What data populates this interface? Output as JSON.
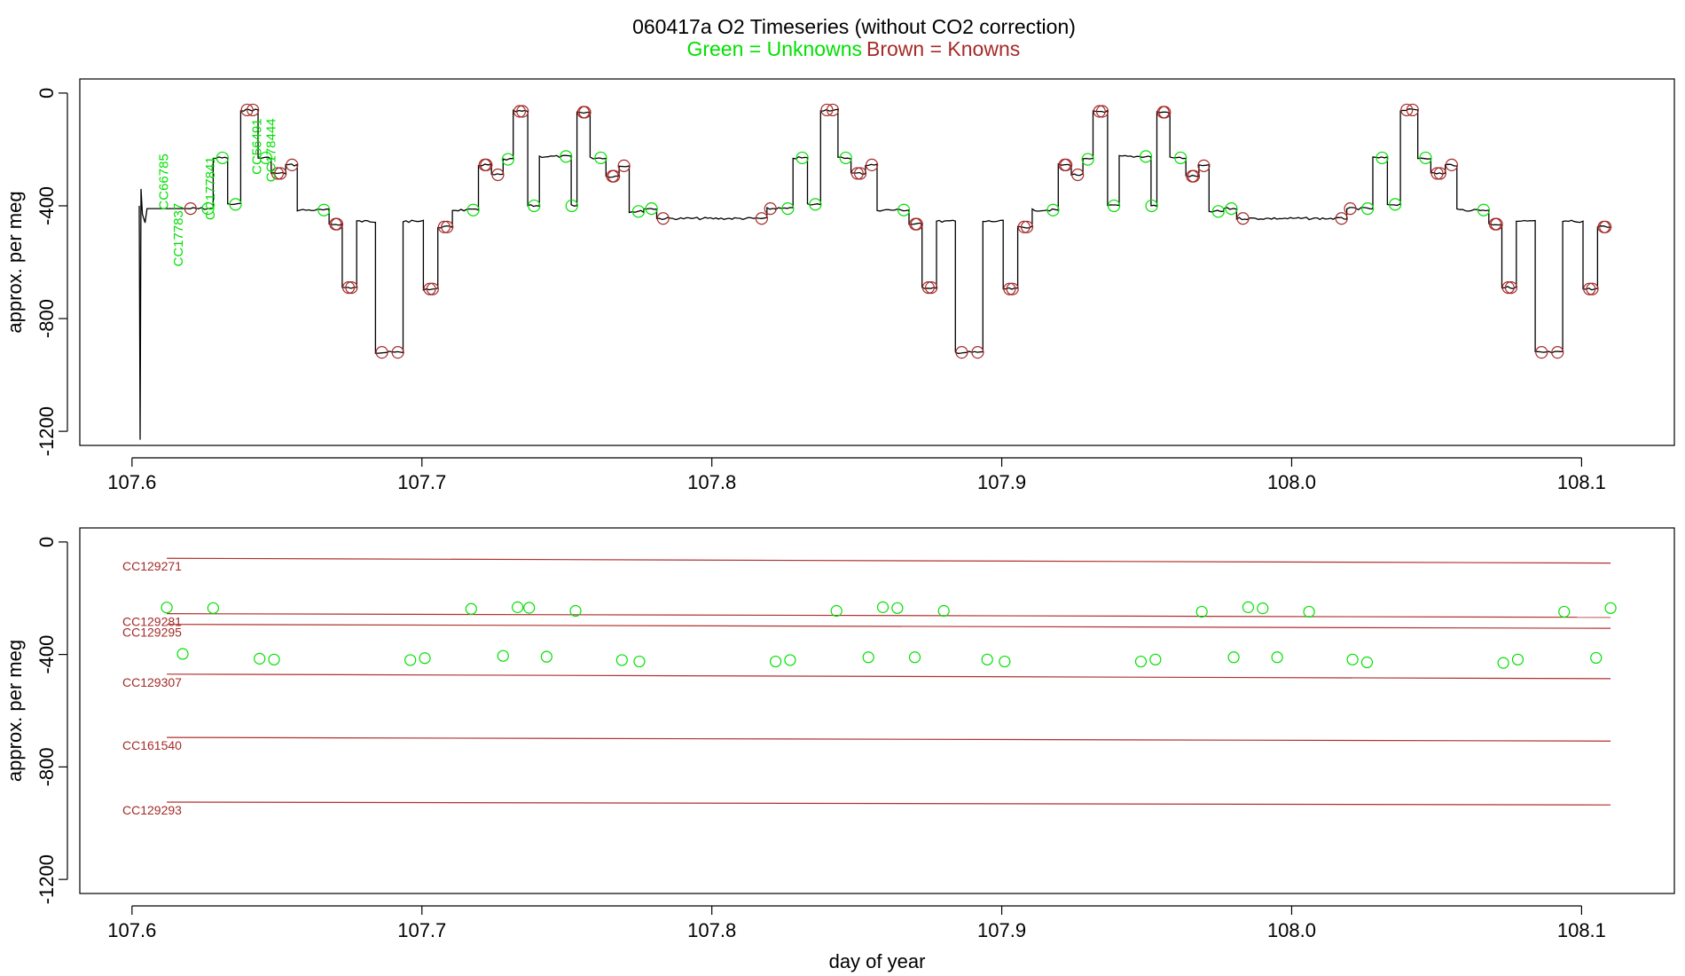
{
  "figure": {
    "title": "060417a   O2 Timeseries (without CO2 correction)",
    "legend_unknowns": "Green = Unknowns",
    "legend_knowns": "Brown = Knowns",
    "colors": {
      "unknowns": "#00e000",
      "knowns": "#a52a2a",
      "trace": "#000000",
      "ref_line": "#b03030"
    }
  },
  "chart_data": [
    {
      "type": "line",
      "panel": "top",
      "xlabel": "",
      "ylabel": "approx. per meg",
      "xlim": [
        107.582,
        108.132
      ],
      "ylim": [
        -1250,
        50
      ],
      "x_ticks": [
        107.6,
        107.7,
        107.8,
        107.9,
        108.0,
        108.1
      ],
      "x_tick_labels": [
        "107.6",
        "107.7",
        "107.8",
        "107.9",
        "108.0",
        "108.1"
      ],
      "y_ticks": [
        0,
        -400,
        -800,
        -1200
      ],
      "y_tick_labels": [
        "0",
        "-400",
        "-800",
        "-1200"
      ],
      "cycle": {
        "period": 0.2,
        "steps": [
          [
            0.0,
            -410,
            "known"
          ],
          [
            0.003,
            -410,
            "unknown"
          ],
          [
            0.009,
            -230,
            "unknown"
          ],
          [
            0.014,
            -395,
            "unknown"
          ],
          [
            0.0185,
            -60,
            "known"
          ],
          [
            0.0245,
            -230,
            "unknown"
          ],
          [
            0.029,
            -285,
            "known"
          ],
          [
            0.034,
            -255,
            "known"
          ],
          [
            0.038,
            -415,
            "unknown"
          ],
          [
            0.049,
            -465,
            "known"
          ],
          [
            0.0535,
            -690,
            "known"
          ],
          [
            0.0585,
            -455,
            "trace"
          ],
          [
            0.065,
            -920,
            "known"
          ],
          [
            0.0745,
            -455,
            "trace"
          ],
          [
            0.0815,
            -695,
            "known"
          ],
          [
            0.0865,
            -475,
            "known"
          ],
          [
            0.0915,
            -415,
            "unknown"
          ],
          [
            0.1005,
            -255,
            "known"
          ],
          [
            0.105,
            -290,
            "known"
          ],
          [
            0.109,
            -235,
            "unknown"
          ],
          [
            0.1125,
            -65,
            "known"
          ],
          [
            0.1175,
            -400,
            "unknown"
          ],
          [
            0.1215,
            -225,
            "unknown"
          ],
          [
            0.1325,
            -400,
            "unknown"
          ],
          [
            0.1345,
            -68,
            "known"
          ],
          [
            0.139,
            -230,
            "unknown"
          ],
          [
            0.1445,
            -295,
            "known"
          ],
          [
            0.149,
            -258,
            "known"
          ],
          [
            0.1525,
            -420,
            "unknown"
          ],
          [
            0.1575,
            -410,
            "unknown"
          ],
          [
            0.162,
            -445,
            "known"
          ]
        ],
        "start": 107.619,
        "cycles": 3,
        "end": 108.11
      },
      "startup_spike": {
        "x": [
          107.6025,
          107.6028,
          107.6031,
          107.6036,
          107.6045,
          107.6052
        ],
        "y": [
          -400,
          -1230,
          -340,
          -430,
          -460,
          -410
        ]
      },
      "annotations": [
        {
          "text": "CC66785",
          "x": 107.6125,
          "y": -215,
          "color": "unknowns",
          "rotate": -90
        },
        {
          "text": "CC177837",
          "x": 107.6175,
          "y": -390,
          "color": "unknowns",
          "rotate": -90
        },
        {
          "text": "CC177841",
          "x": 107.6285,
          "y": -225,
          "color": "unknowns",
          "rotate": -90
        },
        {
          "text": "CC56491",
          "x": 107.6445,
          "y": -90,
          "color": "unknowns",
          "rotate": -90
        },
        {
          "text": "CC178444",
          "x": 107.6495,
          "y": -90,
          "color": "unknowns",
          "rotate": -90
        }
      ]
    },
    {
      "type": "scatter",
      "panel": "bottom",
      "xlabel": "day of year",
      "ylabel": "approx. per meg",
      "xlim": [
        107.582,
        108.132
      ],
      "ylim": [
        -1250,
        50
      ],
      "x_ticks": [
        107.6,
        107.7,
        107.8,
        107.9,
        108.0,
        108.1
      ],
      "x_tick_labels": [
        "107.6",
        "107.7",
        "107.8",
        "107.9",
        "108.0",
        "108.1"
      ],
      "y_ticks": [
        0,
        -400,
        -800,
        -1200
      ],
      "y_tick_labels": [
        "0",
        "-400",
        "-800",
        "-1200"
      ],
      "reference_lines": [
        {
          "name": "CC129271",
          "x": [
            107.612,
            108.11
          ],
          "y": [
            -58,
            -75
          ]
        },
        {
          "name": "CC129281",
          "x": [
            107.612,
            108.11
          ],
          "y": [
            -255,
            -268
          ]
        },
        {
          "name": "CC129295",
          "x": [
            107.612,
            108.11
          ],
          "y": [
            -293,
            -307
          ]
        },
        {
          "name": "CC129307",
          "x": [
            107.612,
            108.11
          ],
          "y": [
            -470,
            -486
          ]
        },
        {
          "name": "CC161540",
          "x": [
            107.612,
            108.11
          ],
          "y": [
            -695,
            -708
          ]
        },
        {
          "name": "CC129293",
          "x": [
            107.612,
            108.11
          ],
          "y": [
            -925,
            -935
          ]
        }
      ],
      "series": [
        {
          "name": "Unknowns",
          "x": [
            107.612,
            107.6175,
            107.628,
            107.644,
            107.649,
            107.696,
            107.701,
            107.717,
            107.728,
            107.733,
            107.737,
            107.743,
            107.753,
            107.769,
            107.775,
            107.822,
            107.827,
            107.843,
            107.854,
            107.859,
            107.864,
            107.87,
            107.88,
            107.895,
            107.901,
            107.948,
            107.953,
            107.969,
            107.98,
            107.985,
            107.99,
            107.995,
            108.006,
            108.021,
            108.026,
            108.073,
            108.078,
            108.094,
            108.105,
            108.11
          ],
          "y": [
            -233,
            -398,
            -235,
            -415,
            -418,
            -420,
            -413,
            -238,
            -405,
            -232,
            -234,
            -408,
            -245,
            -420,
            -425,
            -425,
            -420,
            -245,
            -410,
            -232,
            -235,
            -410,
            -245,
            -418,
            -425,
            -425,
            -418,
            -248,
            -410,
            -232,
            -236,
            -410,
            -248,
            -418,
            -428,
            -430,
            -418,
            -248,
            -412,
            -235
          ]
        }
      ]
    }
  ]
}
